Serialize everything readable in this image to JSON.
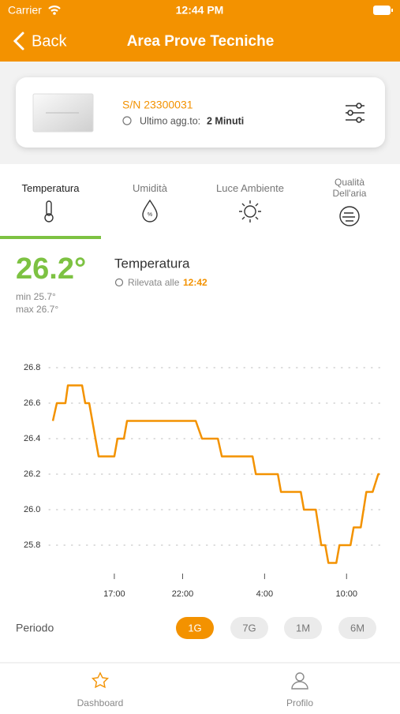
{
  "status": {
    "carrier": "Carrier",
    "time": "12:44 PM"
  },
  "nav": {
    "back": "Back",
    "title": "Area Prove Tecniche"
  },
  "device": {
    "serial": "S/N 23300031",
    "updated_label": "Ultimo agg.to:",
    "updated_value": "2 Minuti"
  },
  "tabs": [
    {
      "label": "Temperatura"
    },
    {
      "label": "Umidità"
    },
    {
      "label": "Luce Ambiente"
    },
    {
      "label": "Qualità Dell'aria"
    }
  ],
  "reading": {
    "value": "26.2°",
    "min": "min 25.7°",
    "max": "max 26.7°",
    "label": "Temperatura",
    "detected_label": "Rilevata alle",
    "detected_time": "12:42"
  },
  "chart_data": {
    "type": "line",
    "color": "#f39200",
    "grid": true,
    "x": [
      12.5,
      12.79,
      13.42,
      13.6,
      14.64,
      14.87,
      15.16,
      15.85,
      17.0,
      17.23,
      17.7,
      17.93,
      22.96,
      23.42,
      24.58,
      24.87,
      27.12,
      27.36,
      28.97,
      29.2,
      30.65,
      30.88,
      31.75,
      32.15,
      32.44,
      32.67,
      33.25,
      33.48,
      34.29,
      34.52,
      35.04,
      35.45,
      35.91,
      36.32,
      36.43
    ],
    "values": [
      26.5,
      26.6,
      26.6,
      26.7,
      26.7,
      26.6,
      26.6,
      26.3,
      26.3,
      26.4,
      26.4,
      26.5,
      26.5,
      26.4,
      26.4,
      26.3,
      26.3,
      26.2,
      26.2,
      26.1,
      26.1,
      26.0,
      26.0,
      25.8,
      25.8,
      25.7,
      25.7,
      25.8,
      25.8,
      25.9,
      25.9,
      26.1,
      26.1,
      26.2,
      26.2
    ],
    "xlim": [
      12.5,
      36.7
    ],
    "xticks": [
      {
        "value": 17,
        "label": "17:00"
      },
      {
        "value": 22,
        "label": "22:00"
      },
      {
        "value": 28,
        "label": "4:00"
      },
      {
        "value": 34,
        "label": "10:00"
      }
    ],
    "ylim": [
      25.7,
      26.8
    ],
    "yticks": [
      25.8,
      {
        "value": 26,
        "label": "26.0"
      },
      26.2,
      26.4,
      26.6,
      26.8
    ]
  },
  "period": {
    "label": "Periodo",
    "options": [
      "1G",
      "7G",
      "1M",
      "6M"
    ],
    "selected": 0
  },
  "tabbar": [
    {
      "label": "Dashboard"
    },
    {
      "label": "Profilo"
    }
  ]
}
